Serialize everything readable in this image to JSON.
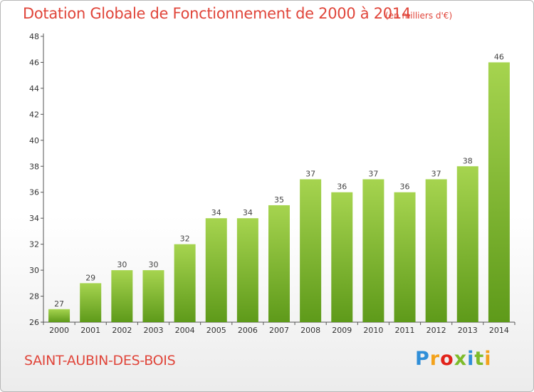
{
  "header": {
    "title": "Dotation Globale de Fonctionnement de 2000 à 2014",
    "unit_note": "(en milliers d'€)"
  },
  "footer": {
    "commune": "SAINT-AUBIN-DES-BOIS",
    "brand": "Proxiti"
  },
  "colors": {
    "title": "#e0453a",
    "bar_light": "#a6d44f",
    "bar_dark": "#5e9a1a",
    "axis": "#555555"
  },
  "chart_data": {
    "type": "bar",
    "title": "Dotation Globale de Fonctionnement de 2000 à 2014",
    "subtitle": "(en milliers d'€)",
    "categories": [
      "2000",
      "2001",
      "2002",
      "2003",
      "2004",
      "2005",
      "2006",
      "2007",
      "2008",
      "2009",
      "2010",
      "2011",
      "2012",
      "2013",
      "2014"
    ],
    "values": [
      27,
      29,
      30,
      30,
      32,
      34,
      34,
      35,
      37,
      36,
      37,
      36,
      37,
      38,
      46
    ],
    "ylim": [
      26,
      48
    ],
    "yticks": [
      26,
      28,
      30,
      32,
      34,
      36,
      38,
      40,
      42,
      44,
      46,
      48
    ],
    "grid": false,
    "legend": "none"
  }
}
